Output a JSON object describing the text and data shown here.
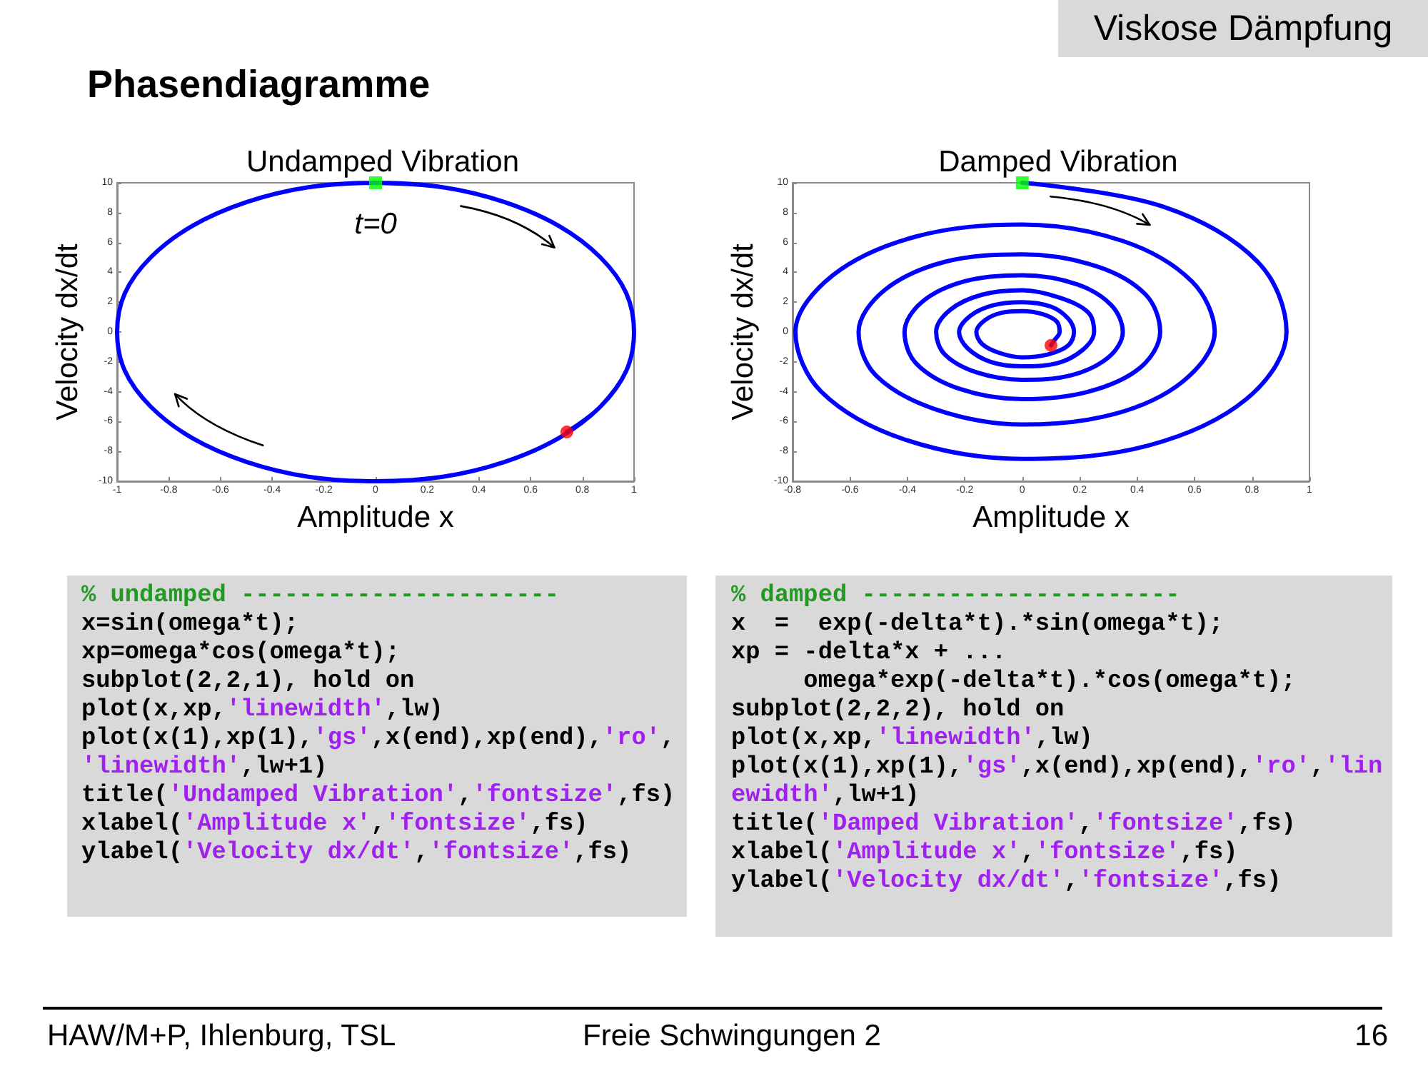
{
  "chart_data": [
    {
      "type": "line",
      "title": "Undamped Vibration",
      "xlabel": "Amplitude x",
      "ylabel": "Velocity dx/dt",
      "xlim": [
        -1,
        1
      ],
      "xticks": [
        -1,
        -0.8,
        -0.6,
        -0.4,
        -0.2,
        0,
        0.2,
        0.4,
        0.6,
        0.8,
        1
      ],
      "ylim": [
        -10,
        10
      ],
      "yticks": [
        -10,
        -8,
        -6,
        -4,
        -2,
        0,
        2,
        4,
        6,
        8,
        10
      ],
      "series": [
        {
          "type": "line",
          "color": "#0000ff",
          "marker": "none",
          "x": [
            0,
            0.26,
            0.5,
            0.71,
            0.87,
            0.97,
            1,
            0.97,
            0.87,
            0.71,
            0.5,
            0.26,
            0,
            -0.26,
            -0.5,
            -0.71,
            -0.87,
            -0.97,
            -1,
            -0.97,
            -0.87,
            -0.71,
            -0.5,
            -0.26,
            0,
            0.26,
            0.5,
            0.71,
            0.87,
            0.97,
            1,
            0.97,
            0.87,
            0.74
          ],
          "values": [
            10,
            9.7,
            8.7,
            7.1,
            5,
            2.6,
            0,
            -2.6,
            -5,
            -7.1,
            -8.7,
            -9.7,
            -10,
            -9.7,
            -8.7,
            -7.1,
            -5,
            -2.6,
            0,
            2.6,
            5,
            7.1,
            8.7,
            9.7,
            10,
            9.7,
            8.7,
            7.1,
            5,
            2.6,
            0,
            -2.6,
            -5,
            -6.7
          ]
        },
        {
          "type": "scatter",
          "color": "#00ff00",
          "marker": "square",
          "x": [
            0
          ],
          "values": [
            10
          ]
        },
        {
          "type": "scatter",
          "color": "#ff0000",
          "marker": "circle",
          "x": [
            0.74
          ],
          "values": [
            -6.7
          ]
        }
      ],
      "annotations": [
        {
          "text": "t=0",
          "x": 0,
          "y": 10
        },
        "% undamped ----------------------",
        "x=sin(omega*t);",
        "xp=omega*cos(omega*t);",
        "subplot(2,2,1), hold on",
        "plot(x,xp,'linewidth',lw)",
        "plot(x(1),xp(1),'gs',x(end),xp(end),'ro',",
        "'linewidth',lw+1)",
        "title('Undamped Vibration','fontsize',fs)",
        "xlabel('Amplitude x','fontsize',fs)",
        "ylabel('Velocity dx/dt','fontsize',fs)"
      ]
    },
    {
      "type": "line",
      "title": "Damped Vibration",
      "xlabel": "Amplitude x",
      "ylabel": "Velocity dx/dt",
      "xlim": [
        -0.8,
        1
      ],
      "xticks": [
        -0.8,
        -0.6,
        -0.4,
        -0.2,
        0,
        0.2,
        0.4,
        0.6,
        0.8,
        1
      ],
      "ylim": [
        -10,
        10
      ],
      "yticks": [
        -10,
        -8,
        -6,
        -4,
        -2,
        0,
        2,
        4,
        6,
        8,
        10
      ],
      "series": [
        {
          "type": "line",
          "color": "#0000ff",
          "marker": "none",
          "x": [
            0,
            0.49,
            0.82,
            0.92,
            0.78,
            0.44,
            0,
            -0.41,
            -0.7,
            -0.79,
            -0.66,
            -0.37,
            0,
            0.35,
            0.59,
            0.67,
            0.56,
            0.32,
            0,
            -0.3,
            -0.51,
            -0.57,
            -0.48,
            -0.27,
            0,
            0.26,
            0.43,
            0.48,
            0.41,
            0.23,
            0,
            -0.22,
            -0.37,
            -0.41,
            -0.35,
            -0.2,
            0,
            0.19,
            0.31,
            0.35,
            0.3,
            0.17,
            0,
            -0.16,
            -0.27,
            -0.3,
            -0.25,
            -0.14,
            0,
            0.13,
            0.23,
            0.25,
            0.21,
            0.12,
            0,
            -0.11,
            -0.19,
            -0.22,
            -0.18,
            -0.1,
            0,
            0.1,
            0.16,
            0.18,
            0.16,
            0.09,
            0,
            -0.08,
            -0.14,
            -0.16,
            -0.13,
            -0.07,
            0,
            0.07,
            0.12,
            0.13,
            0.11,
            0.1
          ],
          "values": [
            10,
            8.4,
            4.7,
            0,
            -4.5,
            -7.6,
            -8.5,
            -7.2,
            -4,
            0,
            3.8,
            6.4,
            7.2,
            6.1,
            3.4,
            0,
            -3.3,
            -5.5,
            -6.2,
            -5.2,
            -2.9,
            0,
            2.8,
            4.7,
            5.2,
            4.4,
            2.5,
            0,
            -2.4,
            -4,
            -4.5,
            -3.8,
            -2.1,
            0,
            2,
            3.4,
            3.8,
            3.2,
            1.8,
            0,
            -1.7,
            -2.9,
            -3.2,
            -2.7,
            -1.5,
            0,
            1.5,
            2.5,
            2.8,
            2.3,
            1.3,
            0,
            -1.2,
            -2.1,
            -2.3,
            -2,
            -1.1,
            0,
            1.1,
            1.8,
            2,
            1.7,
            0.9,
            0,
            -0.9,
            -1.5,
            -1.7,
            -1.4,
            -0.8,
            0,
            0.8,
            1.3,
            1.4,
            1.2,
            0.7,
            0,
            -0.6,
            -0.9
          ]
        },
        {
          "type": "scatter",
          "color": "#00ff00",
          "marker": "square",
          "x": [
            0
          ],
          "values": [
            10
          ]
        },
        {
          "type": "scatter",
          "color": "#ff0000",
          "marker": "circle",
          "x": [
            0.1
          ],
          "values": [
            -0.9
          ]
        }
      ],
      "annotations": [
        "% damped ----------------------",
        "x  =  exp(-delta*t).*sin(omega*t);",
        "xp = -delta*x + ...",
        "     omega*exp(-delta*t).*cos(omega*t);",
        "subplot(2,2,2), hold on",
        "plot(x,xp,'linewidth',lw)",
        "plot(x(1),xp(1),'gs',x(end),xp(end),'ro','lin",
        "ewidth',lw+1)",
        "title('Damped Vibration','fontsize',fs)",
        "xlabel('Amplitude x','fontsize',fs)",
        "ylabel('Velocity dx/dt','fontsize',fs)"
      ]
    },
    {
      "type": "other",
      "title": "Phasendiagramme",
      "annotations": [
        "Viskose Dämpfung",
        "HAW/M+P, Ihlenburg, TSL",
        "Freie Schwingungen 2",
        "16"
      ]
    }
  ]
}
